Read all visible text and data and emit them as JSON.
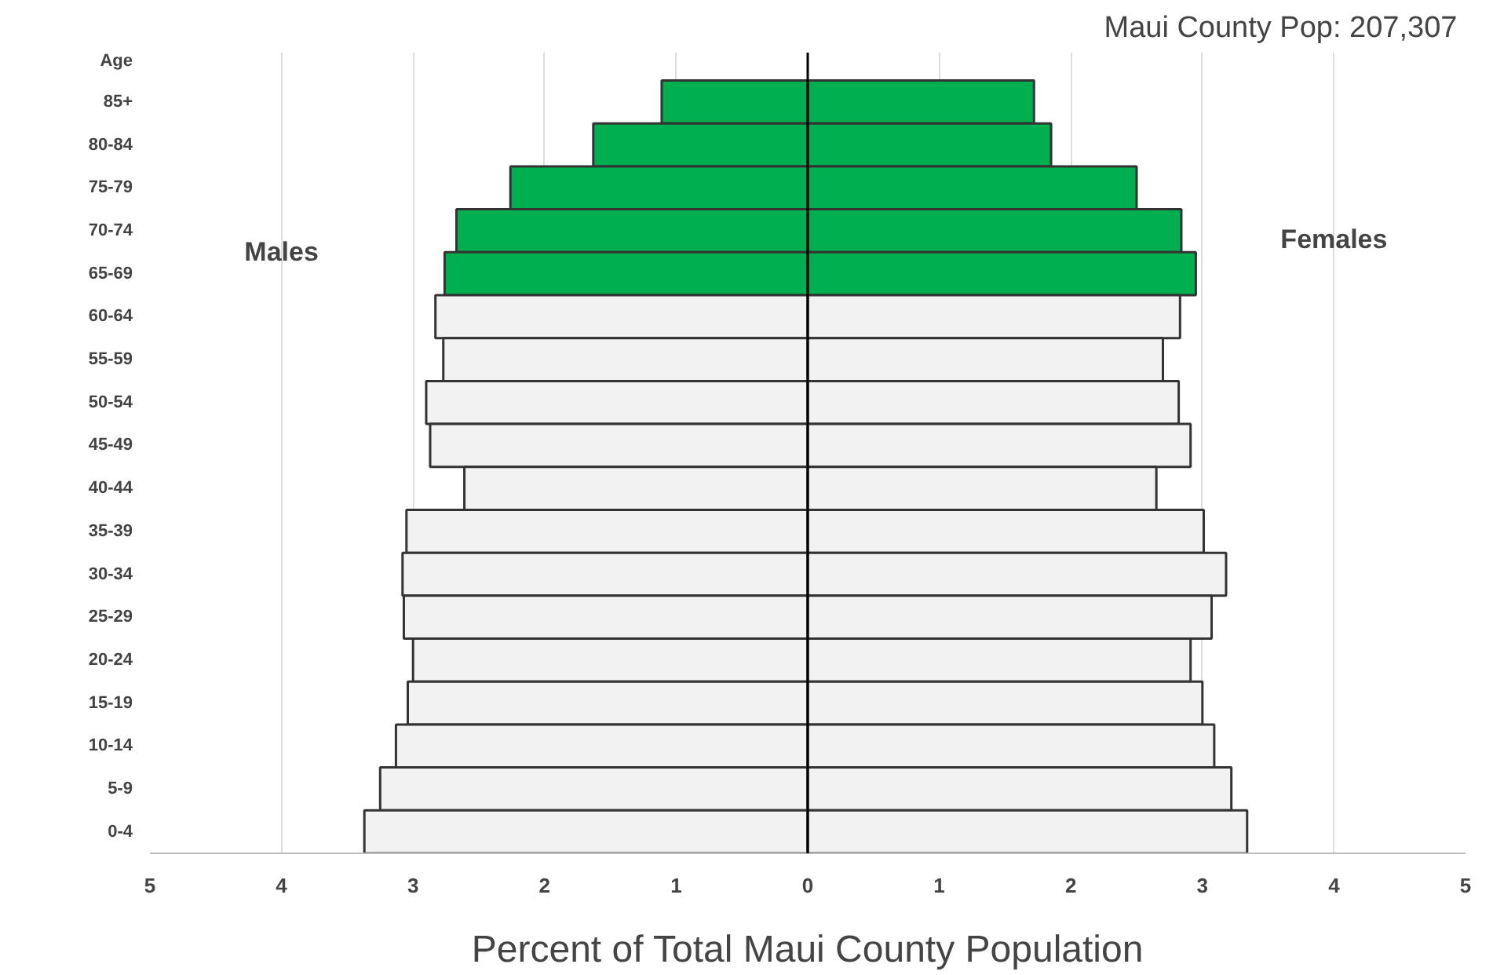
{
  "chart_data": {
    "type": "bar",
    "orientation": "horizontal",
    "subtitle": "Maui County Pop:  207,307",
    "xlabel": "Percent of Total Maui County Population",
    "ylabel": "Age",
    "categories": [
      "85+",
      "80-84",
      "75-79",
      "70-74",
      "65-69",
      "60-64",
      "55-59",
      "50-54",
      "45-49",
      "40-44",
      "35-39",
      "30-34",
      "25-29",
      "20-24",
      "15-19",
      "10-14",
      "5-9",
      "0-4"
    ],
    "series": [
      {
        "colors": [
          "#00b050",
          "#00b050",
          "#00b050",
          "#00b050",
          "#00b050",
          "#f2f2f2",
          "#f2f2f2",
          "#f2f2f2",
          "#f2f2f2",
          "#f2f2f2",
          "#f2f2f2",
          "#f2f2f2",
          "#f2f2f2",
          "#f2f2f2",
          "#f2f2f2",
          "#f2f2f2",
          "#f2f2f2",
          "#f2f2f2"
        ],
        "values": [
          -1.11,
          -1.63,
          -2.26,
          -2.67,
          -2.76,
          -2.83,
          -2.77,
          -2.9,
          -2.87,
          -2.61,
          -3.05,
          -3.08,
          -3.07,
          -3.0,
          -3.04,
          -3.13,
          -3.25,
          -3.37
        ]
      },
      {
        "colors": [
          "#00b050",
          "#00b050",
          "#00b050",
          "#00b050",
          "#00b050",
          "#f2f2f2",
          "#f2f2f2",
          "#f2f2f2",
          "#f2f2f2",
          "#f2f2f2",
          "#f2f2f2",
          "#f2f2f2",
          "#f2f2f2",
          "#f2f2f2",
          "#f2f2f2",
          "#f2f2f2",
          "#f2f2f2",
          "#f2f2f2"
        ],
        "values": [
          1.72,
          1.85,
          2.5,
          2.84,
          2.95,
          2.83,
          2.7,
          2.82,
          2.91,
          2.65,
          3.01,
          3.18,
          3.07,
          2.91,
          3.0,
          3.09,
          3.22,
          3.34
        ]
      }
    ],
    "xlim": [
      -5,
      5
    ],
    "xticks": [
      {
        "value": -5,
        "label": "5"
      },
      {
        "value": -4,
        "label": "4"
      },
      {
        "value": -3,
        "label": "3"
      },
      {
        "value": -2,
        "label": "2"
      },
      {
        "value": -1,
        "label": "1"
      },
      0,
      1,
      2,
      3,
      4,
      5
    ],
    "grid": "x",
    "stacked": true,
    "annotations": [
      "Males",
      "Females"
    ]
  }
}
